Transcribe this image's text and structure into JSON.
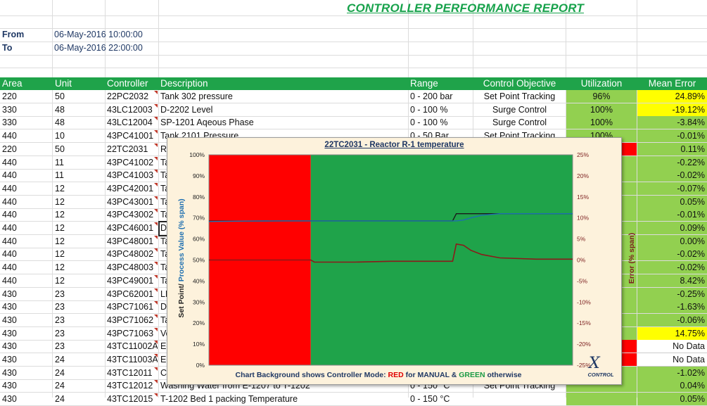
{
  "report": {
    "title": "CONTROLLER PERFORMANCE REPORT",
    "from_label": "From",
    "from_value": "06-May-2016 10:00:00",
    "to_label": "To",
    "to_value": "06-May-2016 22:00:00"
  },
  "table": {
    "headers": [
      "Area",
      "Unit",
      "Controller",
      "Description",
      "Range",
      "Control Objective",
      "Utilization",
      "Mean Error"
    ],
    "rows": [
      {
        "area": "220",
        "unit": "50",
        "controller": "22PC2032",
        "description": "Tank 302 pressure",
        "range": "0 - 200 bar",
        "objective": "Set Point Tracking",
        "utilization": "96%",
        "mean_error": "24.89%",
        "err_bg": "yellow"
      },
      {
        "area": "330",
        "unit": "48",
        "controller": "43LC12003",
        "description": "D-2202 Level",
        "range": "0 - 100 %",
        "objective": "Surge Control",
        "utilization": "100%",
        "mean_error": "-19.12%",
        "err_bg": "yellow"
      },
      {
        "area": "330",
        "unit": "48",
        "controller": "43LC12004",
        "description": "SP-1201 Aqeous Phase",
        "range": "0 - 100 %",
        "objective": "Surge Control",
        "utilization": "100%",
        "mean_error": "-3.84%",
        "err_bg": "green"
      },
      {
        "area": "440",
        "unit": "10",
        "controller": "43PC41001",
        "description": "Tank 2101 Pressure",
        "range": "0 - 50 Bar",
        "objective": "Set Point Tracking",
        "utilization": "100%",
        "mean_error": "-0.01%",
        "err_bg": "green"
      },
      {
        "area": "220",
        "unit": "50",
        "controller": "22TC2031",
        "description": "Re",
        "range": "",
        "objective": "",
        "utilization": "",
        "mean_error": "0.11%",
        "err_bg": "green"
      },
      {
        "area": "440",
        "unit": "11",
        "controller": "43PC41002",
        "description": "Ta",
        "range": "",
        "objective": "",
        "utilization": "",
        "mean_error": "-0.22%",
        "err_bg": "green"
      },
      {
        "area": "440",
        "unit": "11",
        "controller": "43PC41003",
        "description": "Ta",
        "range": "",
        "objective": "",
        "utilization": "",
        "mean_error": "-0.02%",
        "err_bg": "green"
      },
      {
        "area": "440",
        "unit": "12",
        "controller": "43PC42001",
        "description": "Ta",
        "range": "",
        "objective": "",
        "utilization": "",
        "mean_error": "-0.07%",
        "err_bg": "green"
      },
      {
        "area": "440",
        "unit": "12",
        "controller": "43PC43001",
        "description": "Ta",
        "range": "",
        "objective": "",
        "utilization": "",
        "mean_error": "0.05%",
        "err_bg": "green"
      },
      {
        "area": "440",
        "unit": "12",
        "controller": "43PC43002",
        "description": "Ta",
        "range": "",
        "objective": "",
        "utilization": "",
        "mean_error": "-0.01%",
        "err_bg": "green"
      },
      {
        "area": "440",
        "unit": "12",
        "controller": "43PC46001",
        "description": "D-",
        "range": "",
        "objective": "",
        "utilization": "",
        "mean_error": "0.09%",
        "err_bg": "green"
      },
      {
        "area": "440",
        "unit": "12",
        "controller": "43PC48001",
        "description": "Ta",
        "range": "",
        "objective": "",
        "utilization": "",
        "mean_error": "0.00%",
        "err_bg": "green"
      },
      {
        "area": "440",
        "unit": "12",
        "controller": "43PC48002",
        "description": "Ta",
        "range": "",
        "objective": "",
        "utilization": "",
        "mean_error": "-0.02%",
        "err_bg": "green"
      },
      {
        "area": "440",
        "unit": "12",
        "controller": "43PC48003",
        "description": "Ta",
        "range": "",
        "objective": "",
        "utilization": "",
        "mean_error": "-0.02%",
        "err_bg": "green"
      },
      {
        "area": "440",
        "unit": "12",
        "controller": "43PC49001",
        "description": "Ta",
        "range": "",
        "objective": "",
        "utilization": "",
        "mean_error": "8.42%",
        "err_bg": "green"
      },
      {
        "area": "430",
        "unit": "23",
        "controller": "43PC62001",
        "description": "LF",
        "range": "",
        "objective": "",
        "utilization": "",
        "mean_error": "-0.25%",
        "err_bg": "green"
      },
      {
        "area": "430",
        "unit": "23",
        "controller": "43PC71061",
        "description": "D-",
        "range": "",
        "objective": "",
        "utilization": "",
        "mean_error": "-1.63%",
        "err_bg": "green"
      },
      {
        "area": "430",
        "unit": "23",
        "controller": "43PC71062",
        "description": "Ta",
        "range": "",
        "objective": "",
        "utilization": "",
        "mean_error": "-0.06%",
        "err_bg": "green"
      },
      {
        "area": "430",
        "unit": "23",
        "controller": "43PC71063",
        "description": "Ve",
        "range": "",
        "objective": "",
        "utilization": "",
        "mean_error": "14.75%",
        "err_bg": "yellow"
      },
      {
        "area": "430",
        "unit": "23",
        "controller": "43TC11002A",
        "description": "E-",
        "range": "",
        "objective": "",
        "utilization": "",
        "mean_error": "No Data",
        "err_bg": "white"
      },
      {
        "area": "430",
        "unit": "24",
        "controller": "43TC11003A",
        "description": "E-",
        "range": "",
        "objective": "",
        "utilization": "",
        "mean_error": "No Data",
        "err_bg": "white"
      },
      {
        "area": "430",
        "unit": "24",
        "controller": "43TC12011",
        "description": "Cr",
        "range": "",
        "objective": "",
        "utilization": "",
        "mean_error": "-1.02%",
        "err_bg": "green"
      },
      {
        "area": "430",
        "unit": "24",
        "controller": "43TC12012",
        "description": "Washing Water from E-1207 to T-1202",
        "range": "0 - 150 °C",
        "objective": "Set Point Tracking",
        "utilization": "",
        "mean_error": "0.04%",
        "err_bg": "green"
      },
      {
        "area": "430",
        "unit": "24",
        "controller": "43TC12015",
        "description": "T-1202 Bed 1 packing Temperature",
        "range": "0 - 150 °C",
        "objective": "",
        "utilization": "",
        "mean_error": "0.05%",
        "err_bg": "green"
      }
    ]
  },
  "chart_popup": {
    "title": "22TC2031 -  Reactor R-1 temperature",
    "caption_prefix": "Chart Background shows Controller Mode: ",
    "caption_red": "RED",
    "caption_mid": " for MANUAL  & ",
    "caption_green": "GREEN",
    "caption_suffix": " otherwise",
    "ylabel_left_a": "Set Point/ ",
    "ylabel_left_b": "Process Value (% span)",
    "ylabel_right": "Error (% span)",
    "logo_text": "CONTROL",
    "colors": {
      "manual": "#ff0000",
      "auto": "#1fa34a",
      "sp": "#1a1a1a",
      "pv": "#1e6fb0",
      "error": "#8b1a1a"
    }
  },
  "chart_data": {
    "type": "line",
    "title": "22TC2031 -  Reactor R-1 temperature",
    "ylabel": "Set Point/ Process Value (% span)",
    "y2label": "Error (% span)",
    "ylim": [
      0,
      100
    ],
    "y2lim": [
      -25,
      25
    ],
    "yticks": [
      "0%",
      "10%",
      "20%",
      "30%",
      "40%",
      "50%",
      "60%",
      "70%",
      "80%",
      "90%",
      "100%"
    ],
    "y2ticks": [
      "-25%",
      "-20%",
      "-15%",
      "-10%",
      "-5%",
      "0%",
      "5%",
      "10%",
      "15%",
      "20%",
      "25%"
    ],
    "x": [
      0,
      10,
      20,
      28,
      29,
      30,
      40,
      50,
      60,
      67,
      68,
      70,
      72,
      75,
      80,
      90,
      100
    ],
    "mode_segments": [
      {
        "from": 0,
        "to": 28,
        "mode": "MANUAL"
      },
      {
        "from": 28,
        "to": 100,
        "mode": "AUTO"
      }
    ],
    "series": [
      {
        "name": "Set Point",
        "axis": "left",
        "values": [
          68.5,
          68.5,
          68.6,
          68.6,
          68.6,
          68.6,
          68.6,
          68.6,
          68.6,
          68.6,
          72.0,
          72.0,
          72.0,
          72.0,
          72.0,
          72.0,
          72.0
        ]
      },
      {
        "name": "Process Value",
        "axis": "left",
        "values": [
          68.3,
          68.5,
          68.6,
          68.6,
          68.6,
          68.6,
          68.6,
          68.6,
          68.6,
          68.6,
          68.6,
          69.0,
          70.0,
          71.3,
          72.0,
          72.0,
          72.0
        ]
      },
      {
        "name": "Error",
        "axis": "right",
        "values": [
          0.0,
          0.0,
          0.0,
          0.0,
          -0.5,
          -0.5,
          -0.5,
          -0.3,
          -0.3,
          -0.3,
          3.8,
          3.5,
          2.3,
          1.3,
          0.5,
          0.2,
          0.2
        ]
      }
    ]
  }
}
